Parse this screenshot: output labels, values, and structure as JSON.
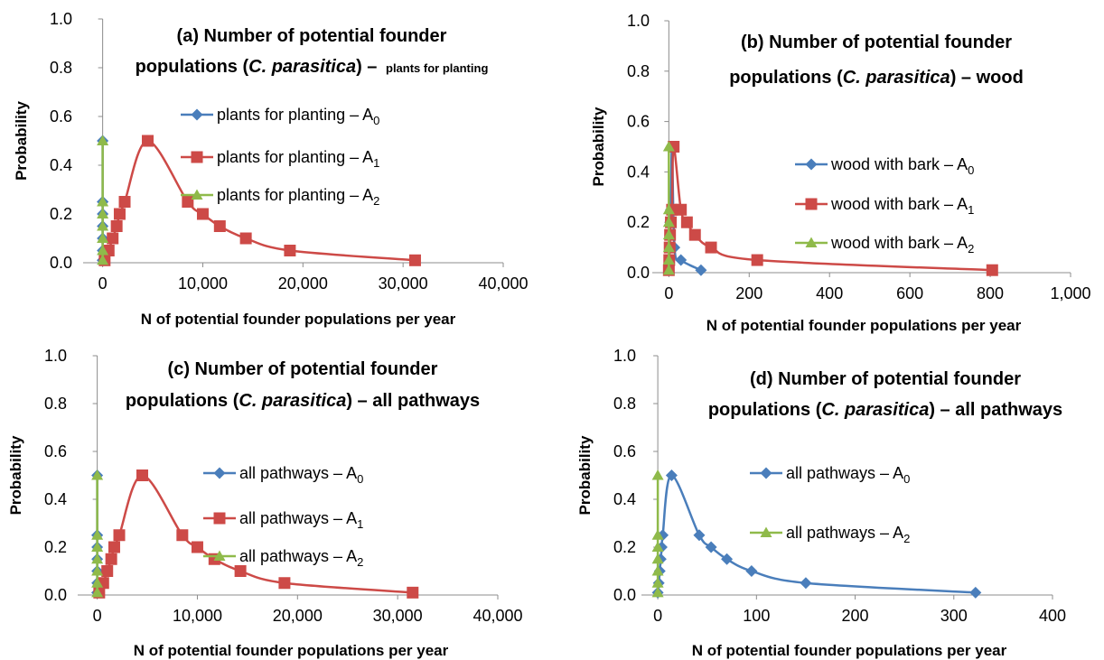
{
  "chart_data": [
    {
      "id": "a",
      "type": "line",
      "title": [
        "(a) Number of potential founder",
        "populations (",
        "C. parasitica",
        ") – ",
        "plants for planting"
      ],
      "xlabel": "N of potential founder populations per year",
      "ylabel": "Probability",
      "xlim": [
        -1500,
        40000
      ],
      "ylim": [
        0,
        1.0
      ],
      "xticks": [
        0,
        10000,
        20000,
        30000,
        40000
      ],
      "xtick_labels": [
        "0",
        "10,000",
        "20,000",
        "30,000",
        "40,000"
      ],
      "yticks": [
        0,
        0.2,
        0.4,
        0.6,
        0.8,
        1.0
      ],
      "ytick_labels": [
        "0.0",
        "0.2",
        "0.4",
        "0.6",
        "0.8",
        "1.0"
      ],
      "grid": false,
      "legend": "right",
      "series": [
        {
          "name": "plants for planting – A",
          "sub": "0",
          "marker": "diamond",
          "color": "#4a7ebb",
          "x": [
            0,
            0,
            0,
            0,
            0,
            0,
            0,
            0,
            0
          ],
          "y": [
            0.01,
            0.05,
            0.1,
            0.15,
            0.2,
            0.25,
            0.5,
            0.25,
            0.01
          ],
          "sorted": true
        },
        {
          "name": "plants for planting – A",
          "sub": "1",
          "marker": "square",
          "color": "#cd4a47",
          "x": [
            200,
            600,
            1000,
            1400,
            1700,
            2200,
            4500,
            8500,
            10000,
            11700,
            14300,
            18700,
            31200
          ],
          "y": [
            0.01,
            0.05,
            0.1,
            0.15,
            0.2,
            0.25,
            0.5,
            0.25,
            0.2,
            0.15,
            0.1,
            0.05,
            0.01
          ]
        },
        {
          "name": "plants for planting – A",
          "sub": "2",
          "marker": "triangle",
          "color": "#8fba4a",
          "x": [
            0,
            0,
            0,
            0,
            0,
            0,
            0
          ],
          "y": [
            0.01,
            0.05,
            0.1,
            0.15,
            0.2,
            0.25,
            0.5
          ],
          "vertical": true
        }
      ]
    },
    {
      "id": "b",
      "type": "line",
      "title": [
        "(b) Number of potential founder",
        "populations (",
        "C. parasitica",
        ") – wood",
        ""
      ],
      "xlabel": "N of potential founder populations per year",
      "ylabel": "Probability",
      "xlim": [
        -30,
        1000
      ],
      "ylim": [
        0,
        1.0
      ],
      "xticks": [
        0,
        200,
        400,
        600,
        800,
        1000
      ],
      "xtick_labels": [
        "0",
        "200",
        "400",
        "600",
        "800",
        "1,000"
      ],
      "yticks": [
        0,
        0.2,
        0.4,
        0.6,
        0.8,
        1.0
      ],
      "ytick_labels": [
        "0.0",
        "0.2",
        "0.4",
        "0.6",
        "0.8",
        "1.0"
      ],
      "grid": false,
      "legend": "right",
      "series": [
        {
          "name": "wood with bark – A",
          "sub": "0",
          "marker": "diamond",
          "color": "#4a7ebb",
          "x": [
            0,
            1,
            2,
            3,
            4,
            5,
            8,
            14,
            30,
            80
          ],
          "y": [
            0.01,
            0.05,
            0.1,
            0.15,
            0.2,
            0.25,
            0.5,
            0.1,
            0.05,
            0.01
          ]
        },
        {
          "name": "wood with bark – A",
          "sub": "1",
          "marker": "square",
          "color": "#cd4a47",
          "x": [
            0,
            1,
            2,
            3,
            5,
            8,
            12,
            30,
            45,
            65,
            105,
            220,
            805
          ],
          "y": [
            0.01,
            0.05,
            0.1,
            0.15,
            0.2,
            0.25,
            0.5,
            0.25,
            0.2,
            0.15,
            0.1,
            0.05,
            0.01
          ]
        },
        {
          "name": "wood with bark – A",
          "sub": "2",
          "marker": "triangle",
          "color": "#8fba4a",
          "x": [
            0,
            0,
            0,
            0,
            0,
            0,
            0
          ],
          "y": [
            0.01,
            0.05,
            0.1,
            0.15,
            0.2,
            0.25,
            0.5
          ],
          "vertical": true
        }
      ]
    },
    {
      "id": "c",
      "type": "line",
      "title": [
        "(c) Number of potential founder",
        "populations (",
        "C. parasitica",
        ") – all pathways",
        ""
      ],
      "xlabel": "N of potential founder populations per year",
      "ylabel": "Probability",
      "xlim": [
        -1500,
        40000
      ],
      "ylim": [
        0,
        1.0
      ],
      "xticks": [
        0,
        10000,
        20000,
        30000,
        40000
      ],
      "xtick_labels": [
        "0",
        "10,000",
        "20,000",
        "30,000",
        "40,000"
      ],
      "yticks": [
        0,
        0.2,
        0.4,
        0.6,
        0.8,
        1.0
      ],
      "ytick_labels": [
        "0.0",
        "0.2",
        "0.4",
        "0.6",
        "0.8",
        "1.0"
      ],
      "grid": false,
      "legend": "right",
      "series": [
        {
          "name": "all pathways – A",
          "sub": "0",
          "marker": "diamond",
          "color": "#4a7ebb",
          "x": [
            0,
            0,
            0,
            0,
            0,
            0,
            0,
            0,
            0
          ],
          "y": [
            0.01,
            0.05,
            0.1,
            0.15,
            0.2,
            0.25,
            0.5,
            0.25,
            0.01
          ],
          "sorted": true
        },
        {
          "name": "all pathways – A",
          "sub": "1",
          "marker": "square",
          "color": "#cd4a47",
          "x": [
            200,
            600,
            1000,
            1400,
            1700,
            2200,
            4500,
            8500,
            10000,
            11700,
            14300,
            18700,
            31500
          ],
          "y": [
            0.01,
            0.05,
            0.1,
            0.15,
            0.2,
            0.25,
            0.5,
            0.25,
            0.2,
            0.15,
            0.1,
            0.05,
            0.01
          ]
        },
        {
          "name": "all pathways – A",
          "sub": "2",
          "marker": "triangle",
          "color": "#8fba4a",
          "x": [
            0,
            0,
            0,
            0,
            0,
            0,
            0
          ],
          "y": [
            0.01,
            0.05,
            0.1,
            0.15,
            0.2,
            0.25,
            0.5
          ],
          "vertical": true
        }
      ]
    },
    {
      "id": "d",
      "type": "line",
      "title": [
        "(d) Number of potential founder",
        "populations (",
        "C. parasitica",
        ") – all pathways",
        ""
      ],
      "xlabel": "N of potential founder populations per year",
      "ylabel": "Probability",
      "xlim": [
        -12,
        400
      ],
      "ylim": [
        0,
        1.0
      ],
      "xticks": [
        0,
        100,
        200,
        300,
        400
      ],
      "xtick_labels": [
        "0",
        "100",
        "200",
        "300",
        "400"
      ],
      "yticks": [
        0,
        0.2,
        0.4,
        0.6,
        0.8,
        1.0
      ],
      "ytick_labels": [
        "0.0",
        "0.2",
        "0.4",
        "0.6",
        "0.8",
        "1.0"
      ],
      "grid": false,
      "legend": "right",
      "series": [
        {
          "name": "all pathways – A",
          "sub": "0",
          "marker": "diamond",
          "color": "#4a7ebb",
          "x": [
            0,
            1,
            2,
            3,
            4,
            5,
            14,
            42,
            54,
            70,
            95,
            150,
            322
          ],
          "y": [
            0.01,
            0.05,
            0.1,
            0.15,
            0.2,
            0.25,
            0.5,
            0.25,
            0.2,
            0.15,
            0.1,
            0.05,
            0.01
          ]
        },
        {
          "name": "all pathways – A",
          "sub": "2",
          "marker": "triangle",
          "color": "#8fba4a",
          "x": [
            0,
            0,
            0,
            0,
            0,
            0,
            0
          ],
          "y": [
            0.01,
            0.05,
            0.1,
            0.15,
            0.2,
            0.25,
            0.5
          ],
          "vertical": true
        }
      ]
    }
  ]
}
